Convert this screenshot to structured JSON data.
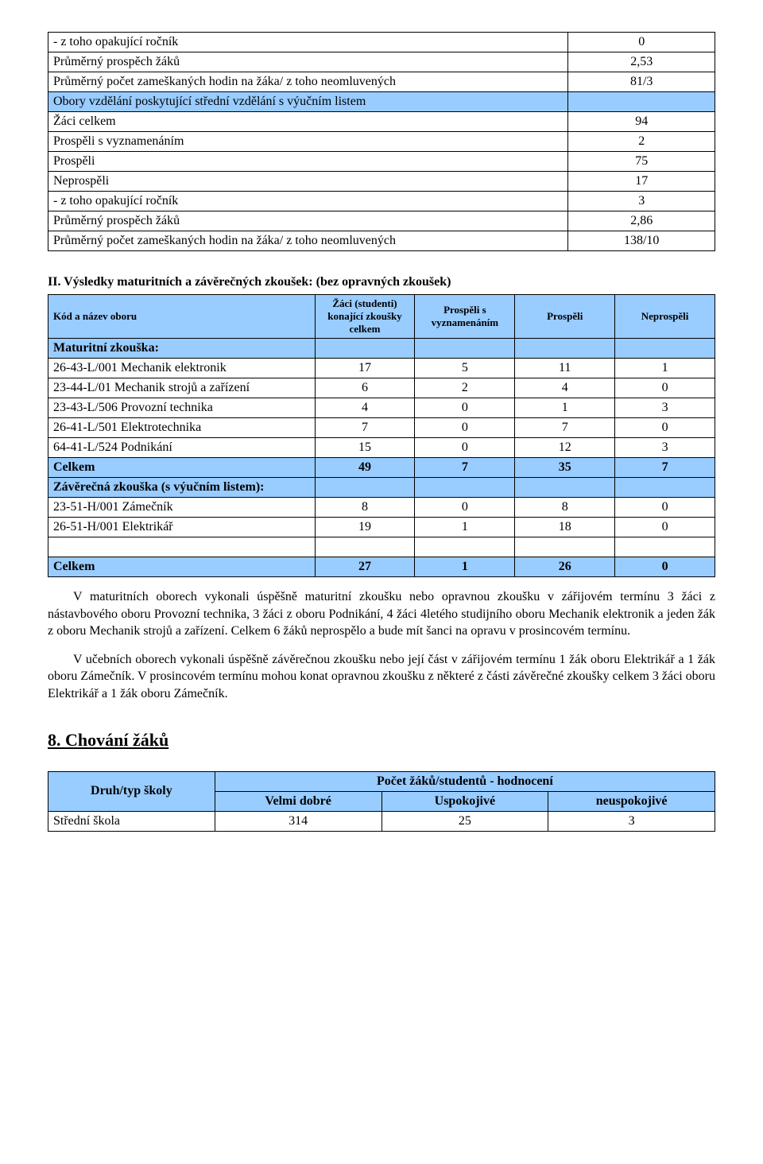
{
  "colors": {
    "header_bg": "#99ccff",
    "border": "#000000",
    "text": "#000000",
    "page_bg": "#ffffff"
  },
  "table1": {
    "rows": [
      {
        "label": "- z toho opakující ročník",
        "value": "0",
        "blue": false
      },
      {
        "label": "Průměrný prospěch žáků",
        "value": "2,53",
        "blue": false
      },
      {
        "label": "Průměrný počet zameškaných hodin na žáka/ z toho neomluvených",
        "value": "81/3",
        "blue": false
      },
      {
        "label": "Obory vzdělání poskytující střední vzdělání s výučním listem",
        "value": "",
        "blue": true
      },
      {
        "label": "Žáci celkem",
        "value": "94",
        "blue": false
      },
      {
        "label": "Prospěli s vyznamenáním",
        "value": "2",
        "blue": false
      },
      {
        "label": "Prospěli",
        "value": "75",
        "blue": false
      },
      {
        "label": "Neprospěli",
        "value": "17",
        "blue": false
      },
      {
        "label": "- z toho opakující ročník",
        "value": "3",
        "blue": false
      },
      {
        "label": "Průměrný prospěch žáků",
        "value": "2,86",
        "blue": false
      },
      {
        "label": "Průměrný počet zameškaných hodin na žáka/ z toho neomluvených",
        "value": "138/10",
        "blue": false
      }
    ]
  },
  "section2": {
    "title": "II. Výsledky maturitních a závěrečných zkoušek: (bez opravných zkoušek)",
    "headers": {
      "c0": "Kód a název oboru",
      "c1": "Žáci (studenti) konající zkoušky celkem",
      "c2": "Prospěli s vyznamenáním",
      "c3": "Prospěli",
      "c4": "Neprospěli"
    },
    "group1_label": "Maturitní zkouška:",
    "rows1": [
      {
        "name": "26-43-L/001 Mechanik elektronik",
        "v": [
          "17",
          "5",
          "11",
          "1"
        ]
      },
      {
        "name": "23-44-L/01 Mechanik strojů a zařízení",
        "v": [
          "6",
          "2",
          "4",
          "0"
        ]
      },
      {
        "name": "23-43-L/506 Provozní technika",
        "v": [
          "4",
          "0",
          "1",
          "3"
        ]
      },
      {
        "name": "26-41-L/501 Elektrotechnika",
        "v": [
          "7",
          "0",
          "7",
          "0"
        ]
      },
      {
        "name": "64-41-L/524 Podnikání",
        "v": [
          "15",
          "0",
          "12",
          "3"
        ]
      }
    ],
    "total1": {
      "name": "Celkem",
      "v": [
        "49",
        "7",
        "35",
        "7"
      ]
    },
    "group2_label": "Závěrečná zkouška (s výučním listem):",
    "rows2": [
      {
        "name": "23-51-H/001 Zámečník",
        "v": [
          "8",
          "0",
          "8",
          "0"
        ]
      },
      {
        "name": "26-51-H/001 Elektrikář",
        "v": [
          "19",
          "1",
          "18",
          "0"
        ]
      }
    ],
    "total2": {
      "name": "Celkem",
      "v": [
        "27",
        "1",
        "26",
        "0"
      ]
    }
  },
  "paragraphs": {
    "p1": "V maturitních oborech  vykonali úspěšně maturitní zkoušku nebo opravnou zkoušku v zářijovém termínu 3 žáci z nástavbového oboru Provozní technika, 3 žáci z oboru Podnikání, 4 žáci 4letého studijního oboru Mechanik elektronik a jeden žák z oboru Mechanik strojů a zařízení. Celkem 6 žáků neprospělo a bude mít šanci na opravu v prosincovém termínu.",
    "p2": "V učebních oborech vykonali úspěšně závěrečnou zkoušku nebo její část v zářijovém termínu 1 žák oboru Elektrikář a 1 žák oboru Zámečník. V prosincovém termínu mohou konat opravnou zkoušku z některé z části závěrečné zkoušky celkem 3 žáci oboru Elektrikář a 1 žák oboru  Zámečník."
  },
  "section8": {
    "heading": "8. Chování žáků",
    "headers": {
      "c0": "Druh/typ školy",
      "c1_span": "Počet žáků/studentů - hodnocení",
      "c1": "Velmi dobré",
      "c2": "Uspokojivé",
      "c3": "neuspokojivé"
    },
    "row": {
      "name": "Střední škola",
      "v": [
        "314",
        "25",
        "3"
      ]
    }
  }
}
